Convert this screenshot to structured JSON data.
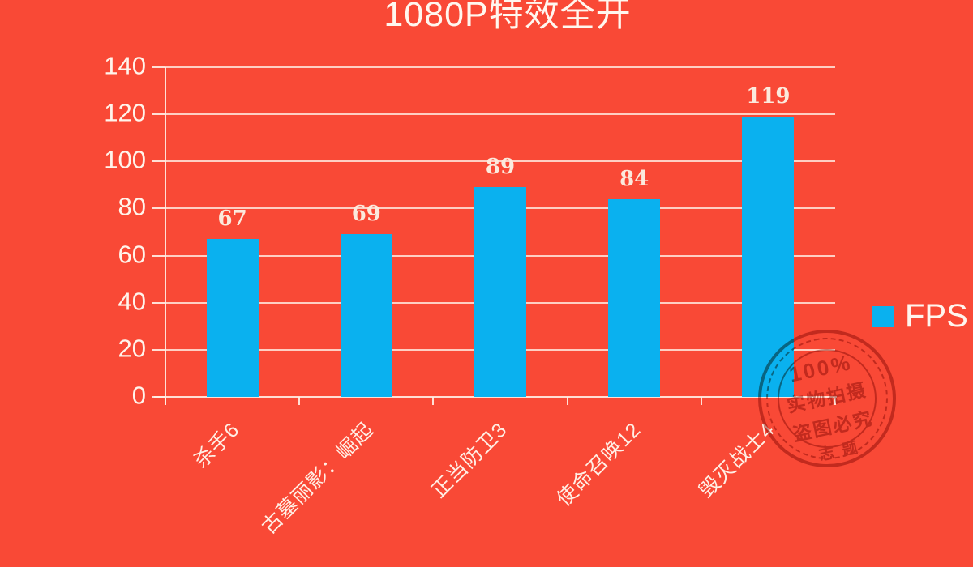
{
  "title": "1080P特效全开",
  "legend": {
    "label": "FPS"
  },
  "colors": {
    "background": "#F94936",
    "bar": "#0AB1EF",
    "grid": "#FFEDE3",
    "text": "#FFF5EC",
    "value_label": "#FBEADD",
    "watermark": "#8F2318"
  },
  "chart_data": {
    "type": "bar",
    "title": "1080P特效全开",
    "categories": [
      "杀手6",
      "古墓丽影：崛起",
      "正当防卫3",
      "使命召唤12",
      "毁灭战士4"
    ],
    "series": [
      {
        "name": "FPS",
        "values": [
          67,
          69,
          89,
          84,
          119
        ]
      }
    ],
    "xlabel": "",
    "ylabel": "",
    "ylim": [
      0,
      140
    ],
    "yticks": [
      0,
      20,
      40,
      60,
      80,
      100,
      120,
      140
    ],
    "grid": true,
    "legend_position": "right",
    "value_labels": true
  },
  "watermark": {
    "lines": [
      "100%",
      "实物拍摄",
      "盗图必究",
      "志题"
    ]
  }
}
